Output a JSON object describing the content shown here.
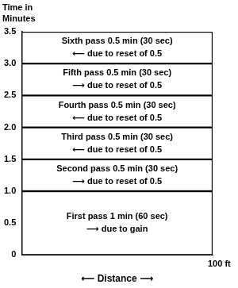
{
  "chart_data": {
    "type": "bar",
    "stacked": true,
    "grid": false,
    "color": "#ffffff",
    "ylabel": "Time in Minutes",
    "xlabel": "⟵ Distance ⟶",
    "categories": [
      null
    ],
    "series": [
      {
        "name": "First pass 1 min (60 sec)",
        "values": [
          1
        ],
        "annotation": "⟶ due to gain"
      },
      {
        "name": "Second pass 0.5 min (30 sec)",
        "values": [
          0.5
        ],
        "annotation": "⟶ due to reset of 0.5"
      },
      {
        "name": "Third pass 0.5 min (30 sec)",
        "values": [
          0.5
        ],
        "annotation": "⟵ due to reset of 0.5"
      },
      {
        "name": "Fourth pass 0.5 min (30 sec)",
        "values": [
          0.5
        ],
        "annotation": "⟵ due to reset of 0.5"
      },
      {
        "name": "Fifth pass 0.5 min (30 sec)",
        "values": [
          0.5
        ],
        "annotation": "⟶ due to reset of 0.5"
      },
      {
        "name": "Sixth pass 0.5 min (30 sec)",
        "values": [
          0.5
        ],
        "annotation": "⟵ due to reset of 0.5"
      }
    ],
    "annotations": [
      "100 ft"
    ],
    "ylim": [
      0,
      3.5
    ],
    "yticks": [
      0,
      0.5,
      {
        "value": 1,
        "label": "1.0"
      },
      1.5,
      {
        "value": 2,
        "label": "2.0"
      },
      2.5,
      {
        "value": 3,
        "label": "3.0"
      },
      3.5
    ]
  }
}
